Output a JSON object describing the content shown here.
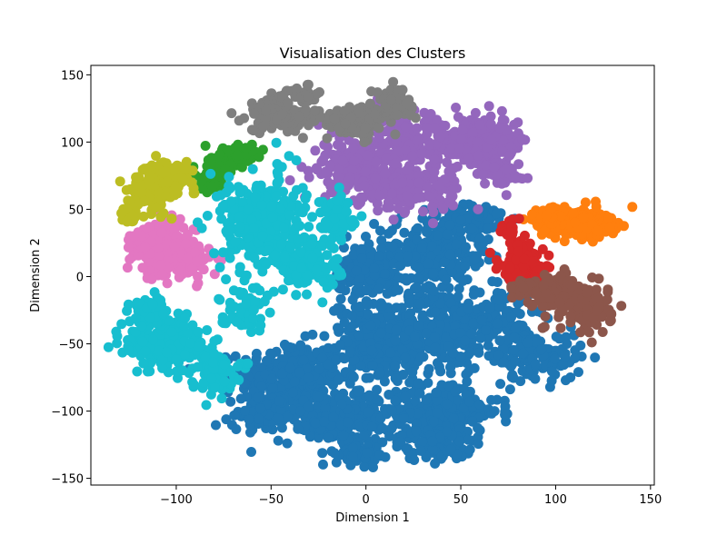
{
  "chart_data": {
    "type": "scatter",
    "title": "Visualisation des Clusters",
    "xlabel": "Dimension 1",
    "ylabel": "Dimension 2",
    "xlim": [
      -145,
      152
    ],
    "ylim": [
      -155,
      157
    ],
    "xticks": [
      -100,
      -50,
      0,
      50,
      100,
      150
    ],
    "yticks": [
      -150,
      -100,
      -50,
      0,
      50,
      100,
      150
    ],
    "grid": false,
    "legend": "none",
    "series": [
      {
        "color": "#1f77b4",
        "blobs": [
          [
            -40,
            -75,
            22,
            22,
            300
          ],
          [
            5,
            -50,
            20,
            25,
            250
          ],
          [
            -15,
            -105,
            25,
            15,
            200
          ],
          [
            40,
            -100,
            25,
            20,
            220
          ],
          [
            40,
            -40,
            20,
            25,
            220
          ],
          [
            35,
            15,
            25,
            25,
            250
          ],
          [
            70,
            -30,
            15,
            20,
            120
          ],
          [
            90,
            -60,
            20,
            15,
            120
          ],
          [
            -5,
            -130,
            10,
            8,
            60
          ],
          [
            35,
            -125,
            15,
            10,
            80
          ],
          [
            55,
            40,
            15,
            15,
            100
          ],
          [
            0,
            5,
            15,
            15,
            150
          ],
          [
            -55,
            -100,
            15,
            10,
            80
          ]
        ]
      },
      {
        "color": "#ff7f0e",
        "blobs": [
          [
            110,
            40,
            14,
            9,
            200
          ],
          [
            125,
            38,
            8,
            6,
            60
          ],
          [
            98,
            45,
            8,
            6,
            50
          ]
        ]
      },
      {
        "color": "#2ca02c",
        "blobs": [
          [
            -78,
            80,
            7,
            12,
            80
          ],
          [
            -65,
            92,
            8,
            5,
            40
          ],
          [
            -85,
            70,
            4,
            5,
            15
          ]
        ]
      },
      {
        "color": "#d62728",
        "blobs": [
          [
            82,
            12,
            10,
            12,
            120
          ],
          [
            75,
            35,
            5,
            6,
            25
          ],
          [
            90,
            -5,
            6,
            6,
            30
          ]
        ]
      },
      {
        "color": "#9467bd",
        "blobs": [
          [
            20,
            95,
            25,
            18,
            200
          ],
          [
            60,
            100,
            22,
            15,
            180
          ],
          [
            -10,
            80,
            15,
            15,
            120
          ],
          [
            20,
            65,
            25,
            12,
            150
          ],
          [
            70,
            80,
            10,
            10,
            60
          ],
          [
            10,
            130,
            5,
            5,
            20
          ]
        ]
      },
      {
        "color": "#8c564b",
        "blobs": [
          [
            105,
            -15,
            14,
            14,
            140
          ],
          [
            120,
            -25,
            8,
            15,
            60
          ],
          [
            85,
            -10,
            8,
            6,
            30
          ]
        ]
      },
      {
        "color": "#e377c2",
        "blobs": [
          [
            -105,
            20,
            13,
            18,
            180
          ],
          [
            -92,
            10,
            8,
            10,
            50
          ],
          [
            -120,
            25,
            6,
            8,
            30
          ]
        ]
      },
      {
        "color": "#7f7f7f",
        "blobs": [
          [
            -45,
            120,
            14,
            10,
            120
          ],
          [
            -5,
            115,
            18,
            10,
            100
          ],
          [
            15,
            130,
            8,
            8,
            60
          ],
          [
            -35,
            135,
            10,
            5,
            40
          ]
        ]
      },
      {
        "color": "#bcbd22",
        "blobs": [
          [
            -112,
            68,
            10,
            14,
            120
          ],
          [
            -100,
            75,
            8,
            8,
            50
          ],
          [
            -125,
            45,
            5,
            5,
            25
          ]
        ]
      },
      {
        "color": "#17becf",
        "blobs": [
          [
            -55,
            40,
            18,
            30,
            300
          ],
          [
            -30,
            10,
            15,
            20,
            150
          ],
          [
            -105,
            -50,
            18,
            18,
            200
          ],
          [
            -80,
            -70,
            10,
            12,
            80
          ],
          [
            -65,
            -25,
            10,
            12,
            60
          ],
          [
            -15,
            45,
            8,
            12,
            80
          ],
          [
            -115,
            -25,
            8,
            10,
            50
          ]
        ]
      }
    ]
  }
}
